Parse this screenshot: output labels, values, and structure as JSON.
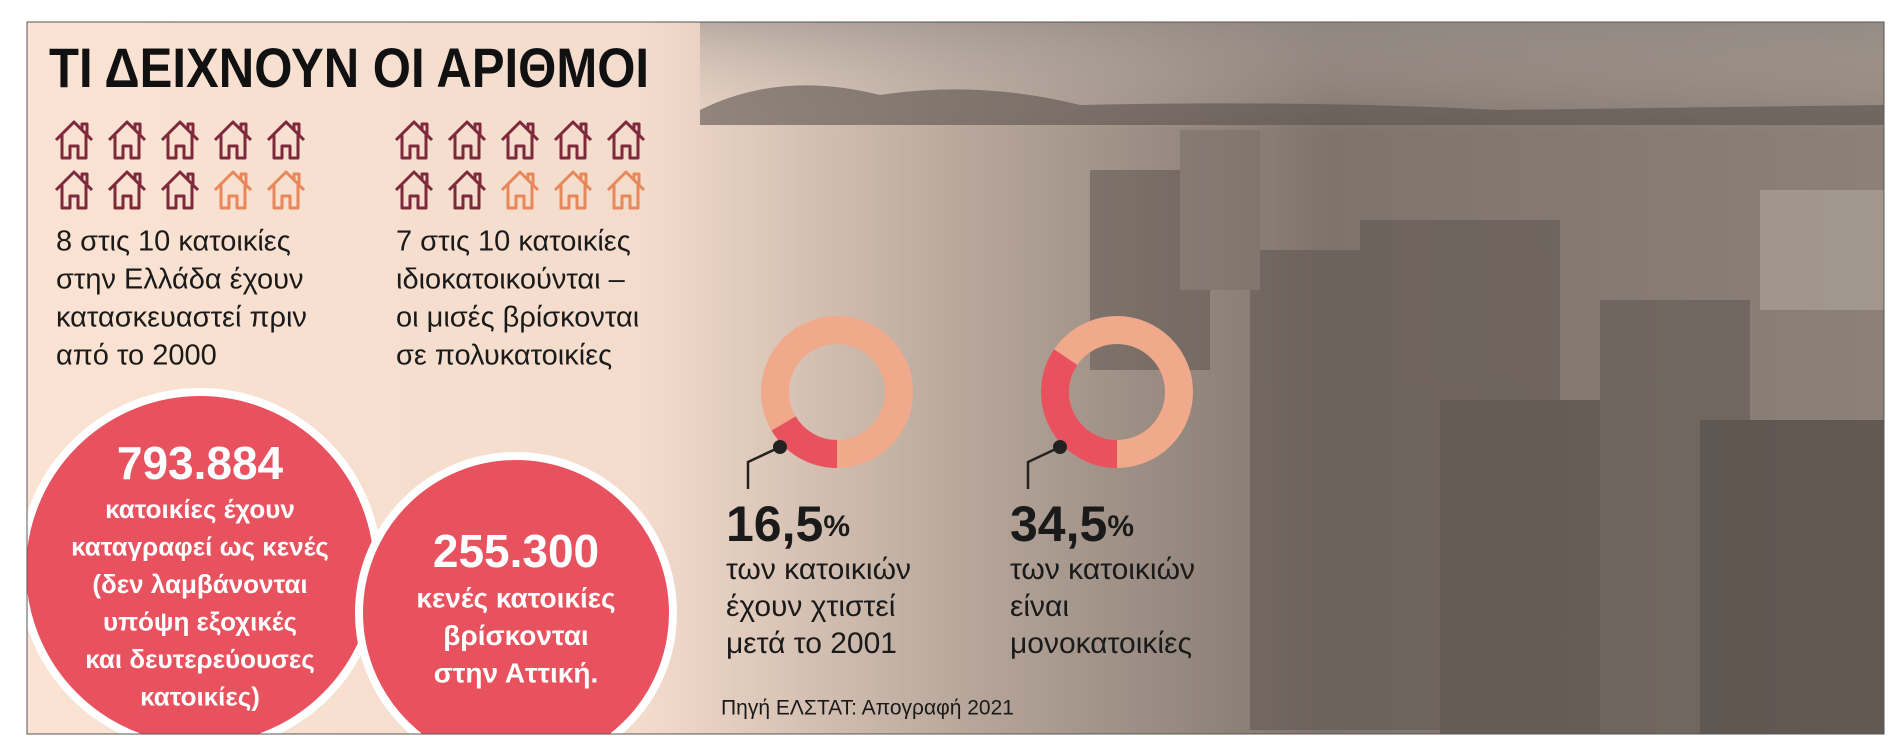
{
  "title": "ΤΙ ΔΕΙΧΝΟΥΝ ΟΙ ΑΡΙΘΜΟΙ",
  "house_groups": [
    {
      "highlighted": 8,
      "total": 10,
      "lines": [
        "8 στις 10 κατοικίες",
        "στην Ελλάδα έχουν",
        "κατασκευαστεί πριν",
        "από το 2000"
      ]
    },
    {
      "highlighted": 7,
      "total": 10,
      "lines": [
        "7 στις 10 κατοικίες",
        "ιδιοκατοικούνται –",
        "οι μισές βρίσκονται",
        "σε πολυκατοικίες"
      ]
    }
  ],
  "circles": [
    {
      "number": "793.884",
      "lines": [
        "κατοικίες έχουν",
        "καταγραφεί ως κενές",
        "(δεν λαμβάνονται",
        "υπόψη εξοχικές",
        "και δευτερεύουσες",
        "κατοικίες)"
      ]
    },
    {
      "number": "255.300",
      "lines": [
        "κενές κατοικίες",
        "βρίσκονται",
        "στην Αττική."
      ]
    }
  ],
  "donuts": [
    {
      "value": 16.5,
      "label": "16,5",
      "unit": "%",
      "lines": [
        "των κατοικιών",
        "έχουν χτιστεί",
        "μετά το 2001"
      ]
    },
    {
      "value": 34.5,
      "label": "34,5",
      "unit": "%",
      "lines": [
        "των κατοικιών",
        "είναι",
        "μονοκατοικίες"
      ]
    }
  ],
  "source": "Πηγή ΕΛΣΤΑΤ: Απογραφή 2021"
}
